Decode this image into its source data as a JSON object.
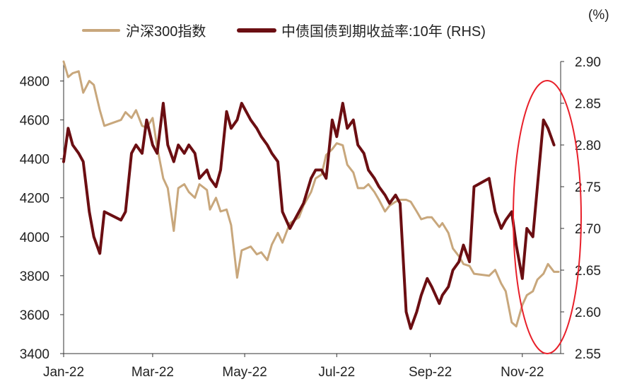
{
  "chart_data": {
    "type": "line",
    "unit_label": "(%)",
    "x_ticks": [
      "Jan-22",
      "Mar-22",
      "May-22",
      "Jul-22",
      "Sep-22",
      "Nov-22"
    ],
    "y_left": {
      "lim": [
        3400,
        4900
      ],
      "ticks": [
        3400,
        3600,
        3800,
        4000,
        4200,
        4400,
        4600,
        4800
      ]
    },
    "y_right": {
      "lim": [
        2.55,
        2.9
      ],
      "ticks": [
        "2.55",
        "2.60",
        "2.65",
        "2.70",
        "2.75",
        "2.80",
        "2.85",
        "2.90"
      ]
    },
    "legend_position": "top",
    "series": [
      {
        "name": "沪深300指数",
        "axis": "left",
        "color": "#c8a77c",
        "points": [
          [
            "2022-01-01",
            4900
          ],
          [
            "2022-01-04",
            4820
          ],
          [
            "2022-01-07",
            4840
          ],
          [
            "2022-01-11",
            4850
          ],
          [
            "2022-01-14",
            4740
          ],
          [
            "2022-01-18",
            4800
          ],
          [
            "2022-01-21",
            4780
          ],
          [
            "2022-01-25",
            4650
          ],
          [
            "2022-01-28",
            4570
          ],
          [
            "2022-02-08",
            4600
          ],
          [
            "2022-02-11",
            4640
          ],
          [
            "2022-02-15",
            4610
          ],
          [
            "2022-02-18",
            4650
          ],
          [
            "2022-02-22",
            4570
          ],
          [
            "2022-02-25",
            4560
          ],
          [
            "2022-03-01",
            4610
          ],
          [
            "2022-03-04",
            4460
          ],
          [
            "2022-03-08",
            4300
          ],
          [
            "2022-03-11",
            4250
          ],
          [
            "2022-03-15",
            4030
          ],
          [
            "2022-03-18",
            4250
          ],
          [
            "2022-03-22",
            4270
          ],
          [
            "2022-03-25",
            4230
          ],
          [
            "2022-03-29",
            4200
          ],
          [
            "2022-04-01",
            4270
          ],
          [
            "2022-04-06",
            4240
          ],
          [
            "2022-04-08",
            4140
          ],
          [
            "2022-04-12",
            4200
          ],
          [
            "2022-04-15",
            4130
          ],
          [
            "2022-04-19",
            4140
          ],
          [
            "2022-04-22",
            4060
          ],
          [
            "2022-04-26",
            3790
          ],
          [
            "2022-04-29",
            3930
          ],
          [
            "2022-05-05",
            3950
          ],
          [
            "2022-05-09",
            3910
          ],
          [
            "2022-05-12",
            3920
          ],
          [
            "2022-05-16",
            3880
          ],
          [
            "2022-05-19",
            3960
          ],
          [
            "2022-05-23",
            4020
          ],
          [
            "2022-05-26",
            3970
          ],
          [
            "2022-05-31",
            4070
          ],
          [
            "2022-06-06",
            4100
          ],
          [
            "2022-06-09",
            4160
          ],
          [
            "2022-06-14",
            4230
          ],
          [
            "2022-06-17",
            4300
          ],
          [
            "2022-06-21",
            4320
          ],
          [
            "2022-06-24",
            4420
          ],
          [
            "2022-06-28",
            4450
          ],
          [
            "2022-07-01",
            4480
          ],
          [
            "2022-07-05",
            4470
          ],
          [
            "2022-07-08",
            4370
          ],
          [
            "2022-07-12",
            4330
          ],
          [
            "2022-07-15",
            4250
          ],
          [
            "2022-07-19",
            4250
          ],
          [
            "2022-07-22",
            4270
          ],
          [
            "2022-07-26",
            4230
          ],
          [
            "2022-07-29",
            4190
          ],
          [
            "2022-08-02",
            4130
          ],
          [
            "2022-08-05",
            4160
          ],
          [
            "2022-08-09",
            4180
          ],
          [
            "2022-08-12",
            4190
          ],
          [
            "2022-08-16",
            4190
          ],
          [
            "2022-08-19",
            4180
          ],
          [
            "2022-08-23",
            4130
          ],
          [
            "2022-08-26",
            4090
          ],
          [
            "2022-08-30",
            4100
          ],
          [
            "2022-09-02",
            4100
          ],
          [
            "2022-09-07",
            4050
          ],
          [
            "2022-09-09",
            4070
          ],
          [
            "2022-09-13",
            4020
          ],
          [
            "2022-09-16",
            3940
          ],
          [
            "2022-09-20",
            3900
          ],
          [
            "2022-09-23",
            3860
          ],
          [
            "2022-09-27",
            3850
          ],
          [
            "2022-09-30",
            3810
          ],
          [
            "2022-10-10",
            3800
          ],
          [
            "2022-10-14",
            3830
          ],
          [
            "2022-10-18",
            3760
          ],
          [
            "2022-10-21",
            3720
          ],
          [
            "2022-10-25",
            3560
          ],
          [
            "2022-10-28",
            3540
          ],
          [
            "2022-11-01",
            3650
          ],
          [
            "2022-11-04",
            3700
          ],
          [
            "2022-11-08",
            3720
          ],
          [
            "2022-11-11",
            3780
          ],
          [
            "2022-11-15",
            3810
          ],
          [
            "2022-11-18",
            3860
          ],
          [
            "2022-11-22",
            3820
          ],
          [
            "2022-11-25",
            3820
          ]
        ]
      },
      {
        "name": "中债国债到期收益率:10年 (RHS)",
        "axis": "right",
        "color": "#6b0e12",
        "points": [
          [
            "2022-01-01",
            2.78
          ],
          [
            "2022-01-04",
            2.82
          ],
          [
            "2022-01-07",
            2.8
          ],
          [
            "2022-01-11",
            2.79
          ],
          [
            "2022-01-14",
            2.78
          ],
          [
            "2022-01-18",
            2.72
          ],
          [
            "2022-01-21",
            2.69
          ],
          [
            "2022-01-25",
            2.67
          ],
          [
            "2022-01-28",
            2.72
          ],
          [
            "2022-02-08",
            2.71
          ],
          [
            "2022-02-11",
            2.72
          ],
          [
            "2022-02-15",
            2.79
          ],
          [
            "2022-02-18",
            2.8
          ],
          [
            "2022-02-22",
            2.79
          ],
          [
            "2022-02-25",
            2.83
          ],
          [
            "2022-03-01",
            2.8
          ],
          [
            "2022-03-04",
            2.79
          ],
          [
            "2022-03-08",
            2.85
          ],
          [
            "2022-03-11",
            2.8
          ],
          [
            "2022-03-15",
            2.78
          ],
          [
            "2022-03-18",
            2.8
          ],
          [
            "2022-03-22",
            2.79
          ],
          [
            "2022-03-25",
            2.8
          ],
          [
            "2022-03-29",
            2.79
          ],
          [
            "2022-04-01",
            2.76
          ],
          [
            "2022-04-06",
            2.77
          ],
          [
            "2022-04-08",
            2.76
          ],
          [
            "2022-04-12",
            2.75
          ],
          [
            "2022-04-15",
            2.77
          ],
          [
            "2022-04-19",
            2.84
          ],
          [
            "2022-04-22",
            2.82
          ],
          [
            "2022-04-26",
            2.83
          ],
          [
            "2022-04-29",
            2.85
          ],
          [
            "2022-05-05",
            2.83
          ],
          [
            "2022-05-09",
            2.82
          ],
          [
            "2022-05-12",
            2.81
          ],
          [
            "2022-05-16",
            2.8
          ],
          [
            "2022-05-19",
            2.79
          ],
          [
            "2022-05-23",
            2.78
          ],
          [
            "2022-05-26",
            2.72
          ],
          [
            "2022-05-31",
            2.7
          ],
          [
            "2022-06-06",
            2.72
          ],
          [
            "2022-06-09",
            2.73
          ],
          [
            "2022-06-14",
            2.76
          ],
          [
            "2022-06-17",
            2.77
          ],
          [
            "2022-06-21",
            2.77
          ],
          [
            "2022-06-24",
            2.76
          ],
          [
            "2022-06-28",
            2.83
          ],
          [
            "2022-07-01",
            2.81
          ],
          [
            "2022-07-05",
            2.85
          ],
          [
            "2022-07-08",
            2.82
          ],
          [
            "2022-07-12",
            2.83
          ],
          [
            "2022-07-15",
            2.8
          ],
          [
            "2022-07-19",
            2.79
          ],
          [
            "2022-07-22",
            2.77
          ],
          [
            "2022-07-26",
            2.76
          ],
          [
            "2022-07-29",
            2.75
          ],
          [
            "2022-08-02",
            2.74
          ],
          [
            "2022-08-05",
            2.73
          ],
          [
            "2022-08-09",
            2.74
          ],
          [
            "2022-08-12",
            2.73
          ],
          [
            "2022-08-16",
            2.6
          ],
          [
            "2022-08-19",
            2.58
          ],
          [
            "2022-08-23",
            2.6
          ],
          [
            "2022-08-26",
            2.62
          ],
          [
            "2022-08-30",
            2.64
          ],
          [
            "2022-09-02",
            2.63
          ],
          [
            "2022-09-07",
            2.61
          ],
          [
            "2022-09-09",
            2.62
          ],
          [
            "2022-09-13",
            2.63
          ],
          [
            "2022-09-16",
            2.65
          ],
          [
            "2022-09-20",
            2.66
          ],
          [
            "2022-09-23",
            2.68
          ],
          [
            "2022-09-27",
            2.66
          ],
          [
            "2022-09-30",
            2.75
          ],
          [
            "2022-10-10",
            2.76
          ],
          [
            "2022-10-14",
            2.72
          ],
          [
            "2022-10-18",
            2.7
          ],
          [
            "2022-10-21",
            2.71
          ],
          [
            "2022-10-25",
            2.72
          ],
          [
            "2022-10-28",
            2.68
          ],
          [
            "2022-11-01",
            2.64
          ],
          [
            "2022-11-04",
            2.7
          ],
          [
            "2022-11-08",
            2.69
          ],
          [
            "2022-11-11",
            2.75
          ],
          [
            "2022-11-15",
            2.83
          ],
          [
            "2022-11-18",
            2.82
          ],
          [
            "2022-11-22",
            2.8
          ]
        ]
      }
    ]
  }
}
